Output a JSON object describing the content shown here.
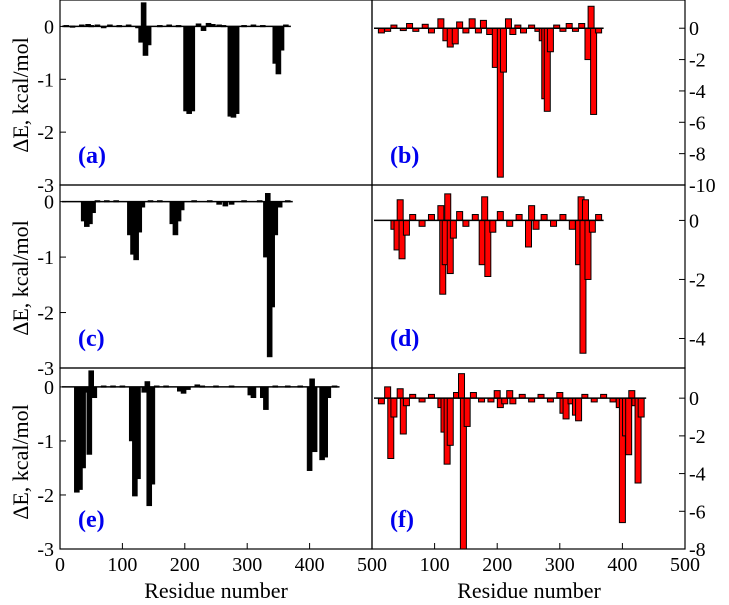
{
  "figure": {
    "x_axis_label": "Residue number",
    "y_axis_label": "ΔE, kcal/mol",
    "x_ticks": [
      "0",
      "100",
      "200",
      "300",
      "400",
      "500"
    ],
    "x_ticks_right": [
      "500",
      "100",
      "200",
      "300",
      "400",
      "500"
    ],
    "colors": {
      "black_bars": "#000000",
      "red_bars": "#ff0000",
      "panel_label": "#0000ee"
    }
  },
  "chart_data": [
    {
      "type": "bar",
      "panel": "(a)",
      "color": "#000000",
      "xlim": [
        0,
        500
      ],
      "ylim": [
        -3,
        0.5
      ],
      "yticks": [
        "0",
        "-1",
        "-2",
        "-3"
      ],
      "bars": [
        {
          "x": 10,
          "y": 0.02
        },
        {
          "x": 20,
          "y": 0.01
        },
        {
          "x": 35,
          "y": 0.03
        },
        {
          "x": 45,
          "y": 0.04
        },
        {
          "x": 50,
          "y": 0.02
        },
        {
          "x": 60,
          "y": 0.03
        },
        {
          "x": 70,
          "y": -0.02
        },
        {
          "x": 80,
          "y": 0.03
        },
        {
          "x": 95,
          "y": 0.02
        },
        {
          "x": 110,
          "y": 0.03
        },
        {
          "x": 125,
          "y": -0.01
        },
        {
          "x": 130,
          "y": -0.3
        },
        {
          "x": 134,
          "y": 0.45
        },
        {
          "x": 137,
          "y": -0.55
        },
        {
          "x": 142,
          "y": -0.35
        },
        {
          "x": 160,
          "y": 0.02
        },
        {
          "x": 175,
          "y": 0.03
        },
        {
          "x": 190,
          "y": 0.02
        },
        {
          "x": 202,
          "y": -1.6
        },
        {
          "x": 207,
          "y": -1.65
        },
        {
          "x": 212,
          "y": -1.6
        },
        {
          "x": 222,
          "y": 0.05
        },
        {
          "x": 230,
          "y": -0.08
        },
        {
          "x": 238,
          "y": 0.06
        },
        {
          "x": 245,
          "y": 0.04
        },
        {
          "x": 255,
          "y": 0.03
        },
        {
          "x": 262,
          "y": 0.02
        },
        {
          "x": 273,
          "y": -1.7
        },
        {
          "x": 278,
          "y": -1.72
        },
        {
          "x": 283,
          "y": -1.65
        },
        {
          "x": 295,
          "y": 0.02
        },
        {
          "x": 310,
          "y": 0.03
        },
        {
          "x": 325,
          "y": 0.02
        },
        {
          "x": 345,
          "y": -0.7
        },
        {
          "x": 350,
          "y": -0.9
        },
        {
          "x": 355,
          "y": -0.45
        },
        {
          "x": 362,
          "y": 0.03
        }
      ]
    },
    {
      "type": "bar",
      "panel": "(b)",
      "color": "#ff0000",
      "xlim": [
        0,
        500
      ],
      "ylim": [
        -10,
        1.8
      ],
      "yticks": [
        "0",
        "-2",
        "-4",
        "-6",
        "-8",
        "-10"
      ],
      "bars": [
        {
          "x": 15,
          "y": -0.3
        },
        {
          "x": 25,
          "y": -0.2
        },
        {
          "x": 35,
          "y": 0.2
        },
        {
          "x": 50,
          "y": -0.15
        },
        {
          "x": 60,
          "y": 0.3
        },
        {
          "x": 70,
          "y": -0.2
        },
        {
          "x": 85,
          "y": 0.25
        },
        {
          "x": 95,
          "y": -0.3
        },
        {
          "x": 110,
          "y": 0.6
        },
        {
          "x": 118,
          "y": -0.8
        },
        {
          "x": 125,
          "y": -1.2
        },
        {
          "x": 133,
          "y": -1.0
        },
        {
          "x": 140,
          "y": 0.4
        },
        {
          "x": 150,
          "y": -0.3
        },
        {
          "x": 160,
          "y": 0.6
        },
        {
          "x": 170,
          "y": -0.3
        },
        {
          "x": 178,
          "y": 0.5
        },
        {
          "x": 188,
          "y": -0.4
        },
        {
          "x": 197,
          "y": -2.5
        },
        {
          "x": 205,
          "y": -9.5
        },
        {
          "x": 210,
          "y": -2.8
        },
        {
          "x": 218,
          "y": 0.6
        },
        {
          "x": 225,
          "y": -0.4
        },
        {
          "x": 233,
          "y": 0.2
        },
        {
          "x": 242,
          "y": -0.3
        },
        {
          "x": 255,
          "y": 0.2
        },
        {
          "x": 265,
          "y": -0.2
        },
        {
          "x": 272,
          "y": -0.8
        },
        {
          "x": 276,
          "y": -4.5
        },
        {
          "x": 280,
          "y": -5.3
        },
        {
          "x": 285,
          "y": -1.5
        },
        {
          "x": 295,
          "y": 0.2
        },
        {
          "x": 305,
          "y": -0.2
        },
        {
          "x": 315,
          "y": 0.3
        },
        {
          "x": 325,
          "y": -0.2
        },
        {
          "x": 335,
          "y": 0.3
        },
        {
          "x": 345,
          "y": -2.0
        },
        {
          "x": 350,
          "y": 1.4
        },
        {
          "x": 354,
          "y": -5.5
        },
        {
          "x": 362,
          "y": -0.3
        }
      ]
    },
    {
      "type": "bar",
      "panel": "(c)",
      "color": "#000000",
      "xlim": [
        0,
        500
      ],
      "ylim": [
        -3,
        0.3
      ],
      "yticks": [
        "0",
        "-1",
        "-2",
        "-3"
      ],
      "bars": [
        {
          "x": 38,
          "y": -0.35
        },
        {
          "x": 43,
          "y": -0.45
        },
        {
          "x": 48,
          "y": -0.4
        },
        {
          "x": 53,
          "y": -0.2
        },
        {
          "x": 60,
          "y": 0.02
        },
        {
          "x": 75,
          "y": 0.02
        },
        {
          "x": 90,
          "y": 0.02
        },
        {
          "x": 112,
          "y": -0.6
        },
        {
          "x": 117,
          "y": -0.95
        },
        {
          "x": 122,
          "y": -1.05
        },
        {
          "x": 127,
          "y": -0.55
        },
        {
          "x": 132,
          "y": -0.1
        },
        {
          "x": 145,
          "y": 0.02
        },
        {
          "x": 160,
          "y": 0.02
        },
        {
          "x": 180,
          "y": -0.4
        },
        {
          "x": 185,
          "y": -0.6
        },
        {
          "x": 190,
          "y": -0.35
        },
        {
          "x": 195,
          "y": -0.15
        },
        {
          "x": 215,
          "y": 0.02
        },
        {
          "x": 240,
          "y": 0.02
        },
        {
          "x": 255,
          "y": -0.05
        },
        {
          "x": 265,
          "y": -0.08
        },
        {
          "x": 275,
          "y": -0.05
        },
        {
          "x": 295,
          "y": 0.02
        },
        {
          "x": 320,
          "y": 0.02
        },
        {
          "x": 330,
          "y": -1.0
        },
        {
          "x": 333,
          "y": 0.15
        },
        {
          "x": 336,
          "y": -2.8
        },
        {
          "x": 340,
          "y": -1.9
        },
        {
          "x": 345,
          "y": -0.6
        },
        {
          "x": 352,
          "y": -0.1
        },
        {
          "x": 365,
          "y": 0.02
        }
      ]
    },
    {
      "type": "bar",
      "panel": "(d)",
      "color": "#ff0000",
      "xlim": [
        0,
        500
      ],
      "ylim": [
        -5,
        1.2
      ],
      "yticks": [
        "0",
        "-2",
        "-4"
      ],
      "bars": [
        {
          "x": 35,
          "y": -0.3
        },
        {
          "x": 40,
          "y": -1.0
        },
        {
          "x": 45,
          "y": 0.7
        },
        {
          "x": 48,
          "y": -1.3
        },
        {
          "x": 55,
          "y": -0.5
        },
        {
          "x": 65,
          "y": 0.2
        },
        {
          "x": 80,
          "y": -0.2
        },
        {
          "x": 95,
          "y": 0.2
        },
        {
          "x": 110,
          "y": 0.5
        },
        {
          "x": 113,
          "y": -2.5
        },
        {
          "x": 117,
          "y": -1.5
        },
        {
          "x": 121,
          "y": 0.9
        },
        {
          "x": 125,
          "y": -1.8
        },
        {
          "x": 130,
          "y": -0.6
        },
        {
          "x": 140,
          "y": 0.3
        },
        {
          "x": 150,
          "y": -0.2
        },
        {
          "x": 165,
          "y": 0.2
        },
        {
          "x": 176,
          "y": -1.5
        },
        {
          "x": 180,
          "y": 0.8
        },
        {
          "x": 185,
          "y": -1.9
        },
        {
          "x": 193,
          "y": -0.4
        },
        {
          "x": 205,
          "y": 0.3
        },
        {
          "x": 220,
          "y": -0.2
        },
        {
          "x": 235,
          "y": 0.2
        },
        {
          "x": 250,
          "y": -0.9
        },
        {
          "x": 255,
          "y": 0.5
        },
        {
          "x": 262,
          "y": -0.3
        },
        {
          "x": 275,
          "y": 0.2
        },
        {
          "x": 290,
          "y": -0.2
        },
        {
          "x": 305,
          "y": 0.2
        },
        {
          "x": 320,
          "y": -0.3
        },
        {
          "x": 330,
          "y": -1.5
        },
        {
          "x": 334,
          "y": 0.8
        },
        {
          "x": 337,
          "y": -4.5
        },
        {
          "x": 341,
          "y": 0.7
        },
        {
          "x": 345,
          "y": -2.0
        },
        {
          "x": 352,
          "y": -0.4
        },
        {
          "x": 362,
          "y": 0.2
        }
      ]
    },
    {
      "type": "bar",
      "panel": "(e)",
      "color": "#000000",
      "xlim": [
        0,
        500
      ],
      "ylim": [
        -3,
        0.35
      ],
      "yticks": [
        "0",
        "-1",
        "-2",
        "-3"
      ],
      "bars": [
        {
          "x": 27,
          "y": -1.95
        },
        {
          "x": 32,
          "y": -1.9
        },
        {
          "x": 37,
          "y": -1.5
        },
        {
          "x": 42,
          "y": -0.1
        },
        {
          "x": 47,
          "y": -1.25
        },
        {
          "x": 50,
          "y": 0.3
        },
        {
          "x": 55,
          "y": -0.2
        },
        {
          "x": 70,
          "y": 0.02
        },
        {
          "x": 85,
          "y": 0.02
        },
        {
          "x": 100,
          "y": 0.02
        },
        {
          "x": 115,
          "y": -1.0
        },
        {
          "x": 120,
          "y": -2.02
        },
        {
          "x": 125,
          "y": -1.7
        },
        {
          "x": 135,
          "y": -0.1
        },
        {
          "x": 140,
          "y": 0.1
        },
        {
          "x": 143,
          "y": -2.2
        },
        {
          "x": 148,
          "y": -1.8
        },
        {
          "x": 155,
          "y": 0.02
        },
        {
          "x": 170,
          "y": 0.02
        },
        {
          "x": 192,
          "y": -0.08
        },
        {
          "x": 198,
          "y": -0.12
        },
        {
          "x": 205,
          "y": -0.05
        },
        {
          "x": 220,
          "y": 0.04
        },
        {
          "x": 228,
          "y": 0.02
        },
        {
          "x": 250,
          "y": 0.02
        },
        {
          "x": 275,
          "y": 0.02
        },
        {
          "x": 305,
          "y": -0.15
        },
        {
          "x": 310,
          "y": -0.2
        },
        {
          "x": 325,
          "y": -0.2
        },
        {
          "x": 330,
          "y": -0.42
        },
        {
          "x": 345,
          "y": 0.02
        },
        {
          "x": 365,
          "y": 0.02
        },
        {
          "x": 385,
          "y": 0.02
        },
        {
          "x": 400,
          "y": -1.55
        },
        {
          "x": 404,
          "y": 0.15
        },
        {
          "x": 408,
          "y": -1.2
        },
        {
          "x": 420,
          "y": -1.35
        },
        {
          "x": 425,
          "y": -1.3
        },
        {
          "x": 430,
          "y": -0.2
        },
        {
          "x": 440,
          "y": 0.02
        }
      ]
    },
    {
      "type": "bar",
      "panel": "(f)",
      "color": "#ff0000",
      "xlim": [
        0,
        500
      ],
      "ylim": [
        -8,
        1.6
      ],
      "yticks": [
        "0",
        "-2",
        "-4",
        "-6",
        "-8"
      ],
      "bars": [
        {
          "x": 15,
          "y": -0.3
        },
        {
          "x": 25,
          "y": 0.6
        },
        {
          "x": 30,
          "y": -3.2
        },
        {
          "x": 35,
          "y": -1.0
        },
        {
          "x": 45,
          "y": 0.5
        },
        {
          "x": 50,
          "y": -1.9
        },
        {
          "x": 55,
          "y": -0.4
        },
        {
          "x": 65,
          "y": 0.2
        },
        {
          "x": 80,
          "y": -0.2
        },
        {
          "x": 95,
          "y": 0.2
        },
        {
          "x": 110,
          "y": -0.5
        },
        {
          "x": 115,
          "y": -1.8
        },
        {
          "x": 120,
          "y": -3.5
        },
        {
          "x": 125,
          "y": -2.5
        },
        {
          "x": 135,
          "y": 0.3
        },
        {
          "x": 143,
          "y": 1.3
        },
        {
          "x": 146,
          "y": -8.0
        },
        {
          "x": 152,
          "y": -1.5
        },
        {
          "x": 162,
          "y": 0.3
        },
        {
          "x": 175,
          "y": -0.2
        },
        {
          "x": 190,
          "y": -0.2
        },
        {
          "x": 200,
          "y": 0.4
        },
        {
          "x": 205,
          "y": -0.5
        },
        {
          "x": 212,
          "y": -0.3
        },
        {
          "x": 220,
          "y": 0.4
        },
        {
          "x": 225,
          "y": -0.3
        },
        {
          "x": 240,
          "y": 0.2
        },
        {
          "x": 255,
          "y": -0.2
        },
        {
          "x": 270,
          "y": 0.2
        },
        {
          "x": 285,
          "y": -0.2
        },
        {
          "x": 300,
          "y": 0.3
        },
        {
          "x": 305,
          "y": -0.8
        },
        {
          "x": 310,
          "y": -1.1
        },
        {
          "x": 318,
          "y": -0.3
        },
        {
          "x": 325,
          "y": -0.9
        },
        {
          "x": 330,
          "y": -1.2
        },
        {
          "x": 340,
          "y": 0.2
        },
        {
          "x": 355,
          "y": -0.2
        },
        {
          "x": 370,
          "y": 0.2
        },
        {
          "x": 385,
          "y": -0.2
        },
        {
          "x": 395,
          "y": -0.5
        },
        {
          "x": 400,
          "y": -6.6
        },
        {
          "x": 405,
          "y": -2.0
        },
        {
          "x": 410,
          "y": -3.0
        },
        {
          "x": 415,
          "y": 0.4
        },
        {
          "x": 420,
          "y": -0.4
        },
        {
          "x": 425,
          "y": -4.5
        },
        {
          "x": 430,
          "y": -1.0
        }
      ]
    }
  ]
}
